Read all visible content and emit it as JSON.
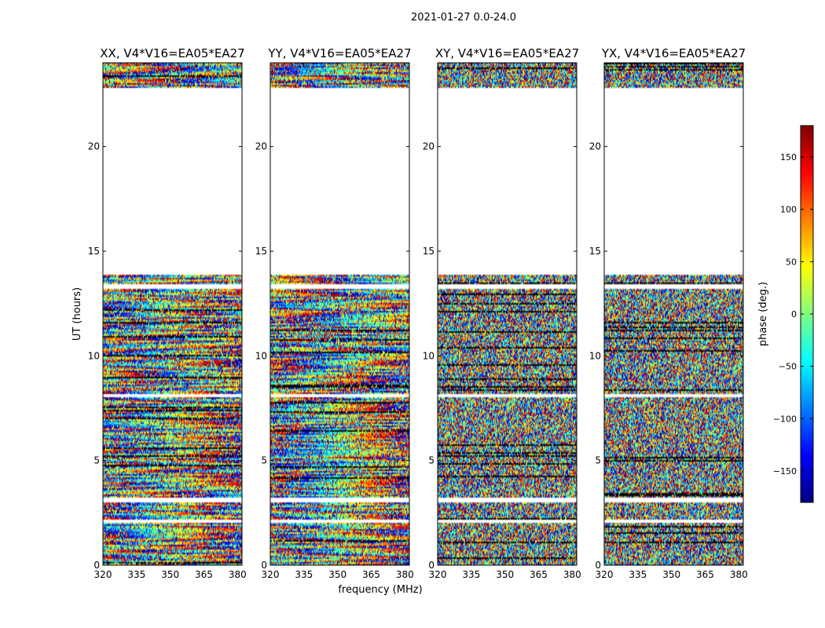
{
  "figure": {
    "suptitle": "2021-01-27 0.0-24.0",
    "ylabel": "UT (hours)",
    "xlabel": "frequency (MHz)"
  },
  "colorbar": {
    "label": "phase (deg.)",
    "range": [
      -180,
      180
    ],
    "ticks": [
      150,
      100,
      50,
      0,
      -50,
      -100,
      -150
    ],
    "tick_labels": [
      "150",
      "100",
      "50",
      "0",
      "−50",
      "−100",
      "−150"
    ],
    "colormap": [
      "#00007f",
      "#0000ff",
      "#007fff",
      "#00ffff",
      "#7fff7f",
      "#ffff00",
      "#ff7f00",
      "#ff0000",
      "#7f0000"
    ]
  },
  "chart_data": {
    "type": "heatmap",
    "title": "2021-01-27 0.0-24.0",
    "x_range": [
      320,
      382
    ],
    "y_range": [
      0,
      24
    ],
    "x_ticks": [
      320,
      335,
      350,
      365,
      380
    ],
    "y_ticks": [
      0,
      5,
      10,
      15,
      20
    ],
    "xlabel": "frequency (MHz)",
    "ylabel": "UT (hours)",
    "value_label": "phase (deg.)",
    "value_range": [
      -180,
      180
    ],
    "data_coverage_hours": [
      [
        0.0,
        2.0
      ],
      [
        2.2,
        3.0
      ],
      [
        3.2,
        8.0
      ],
      [
        8.2,
        13.2
      ],
      [
        13.4,
        13.9
      ],
      [
        22.8,
        24.0
      ]
    ],
    "panels": [
      {
        "title": "XX, V4*V16=EA05*EA27",
        "pol": "XX",
        "structure": "coherent"
      },
      {
        "title": "YY, V4*V16=EA05*EA27",
        "pol": "YY",
        "structure": "coherent"
      },
      {
        "title": "XY, V4*V16=EA05*EA27",
        "pol": "XY",
        "structure": "noise"
      },
      {
        "title": "YX, V4*V16=EA05*EA27",
        "pol": "YX",
        "structure": "noise"
      }
    ]
  }
}
